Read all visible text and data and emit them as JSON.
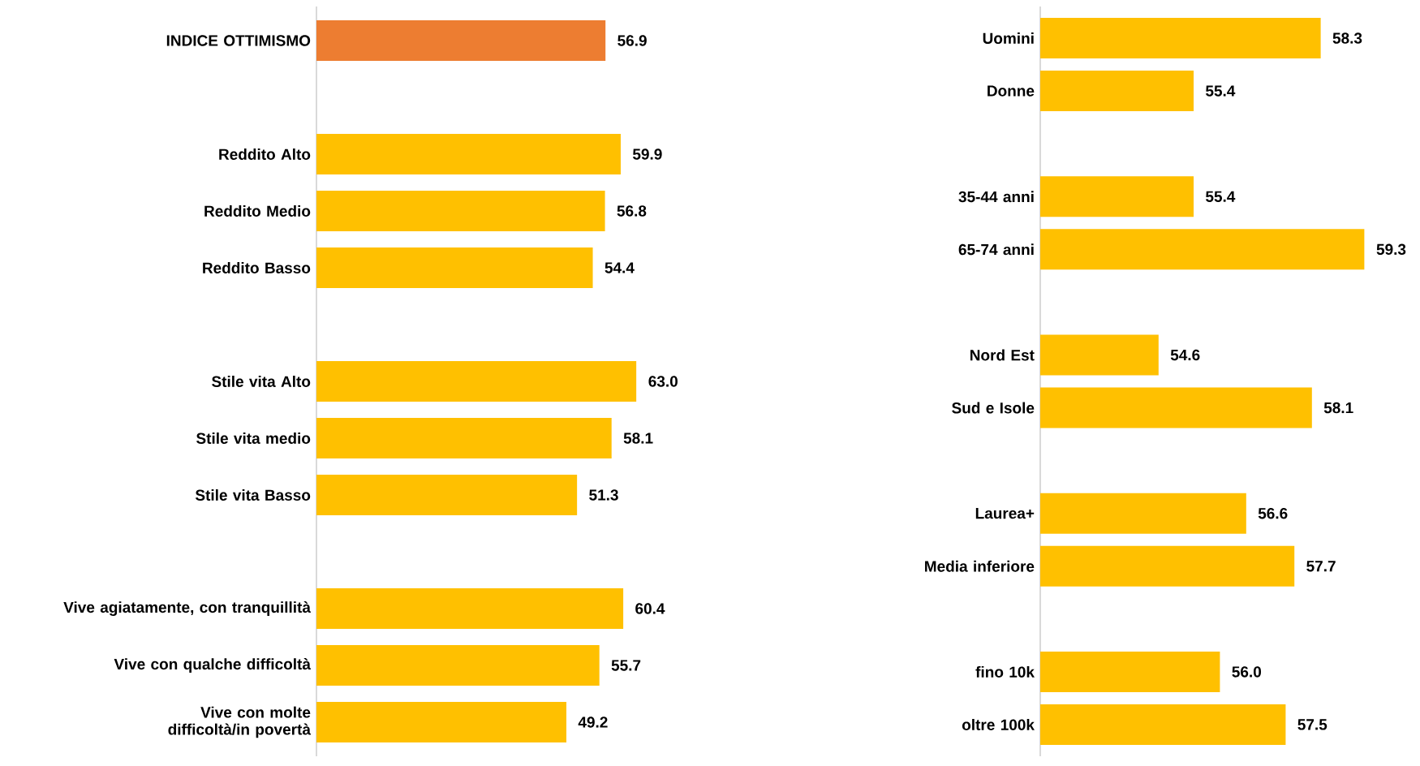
{
  "chart_data": [
    {
      "type": "bar",
      "orientation": "horizontal",
      "tick_labels": "y",
      "xlim": [
        0,
        63.0
      ],
      "value_labels": [
        "56.9",
        null,
        "59.9",
        "56.8",
        "54.4",
        null,
        "63.0",
        "58.1",
        "51.3",
        null,
        "60.4",
        "55.7",
        "49.2"
      ],
      "categories": [
        "INDICE OTTIMISMO",
        null,
        "Reddito Alto",
        "Reddito Medio",
        "Reddito Basso",
        null,
        "Stile vita Alto",
        "Stile vita medio",
        "Stile vita Basso",
        null,
        "Vive agiatamente, con tranquillità",
        "Vive con qualche difficoltà",
        "Vive con molte difficoltà/in povertà"
      ],
      "values": [
        56.9,
        null,
        59.9,
        56.8,
        54.4,
        null,
        63.0,
        58.1,
        51.3,
        null,
        60.4,
        55.7,
        49.2
      ],
      "colors": [
        "#ed7d31",
        null,
        "#ffc000",
        "#ffc000",
        "#ffc000",
        null,
        "#ffc000",
        "#ffc000",
        "#ffc000",
        null,
        "#ffc000",
        "#ffc000",
        "#ffc000"
      ]
    },
    {
      "type": "bar",
      "orientation": "horizontal",
      "tick_labels": "y",
      "xlim": [
        51.9,
        59.3
      ],
      "value_labels": [
        "58.3",
        "55.4",
        null,
        "55.4",
        "59.3",
        null,
        "54.6",
        "58.1",
        null,
        "56.6",
        "57.7",
        null,
        "56.0",
        "57.5"
      ],
      "categories": [
        "Uomini",
        "Donne",
        null,
        "35-44 anni",
        "65-74 anni",
        null,
        "Nord Est",
        "Sud e Isole",
        null,
        "Laurea+",
        "Media inferiore",
        null,
        "fino 10k",
        "oltre 100k"
      ],
      "values": [
        58.3,
        55.4,
        null,
        55.4,
        59.3,
        null,
        54.6,
        58.1,
        null,
        56.6,
        57.7,
        null,
        56.0,
        57.5
      ],
      "colors": [
        "#ffc000",
        "#ffc000",
        null,
        "#ffc000",
        "#ffc000",
        null,
        "#ffc000",
        "#ffc000",
        null,
        "#ffc000",
        "#ffc000",
        null,
        "#ffc000",
        "#ffc000"
      ]
    }
  ]
}
